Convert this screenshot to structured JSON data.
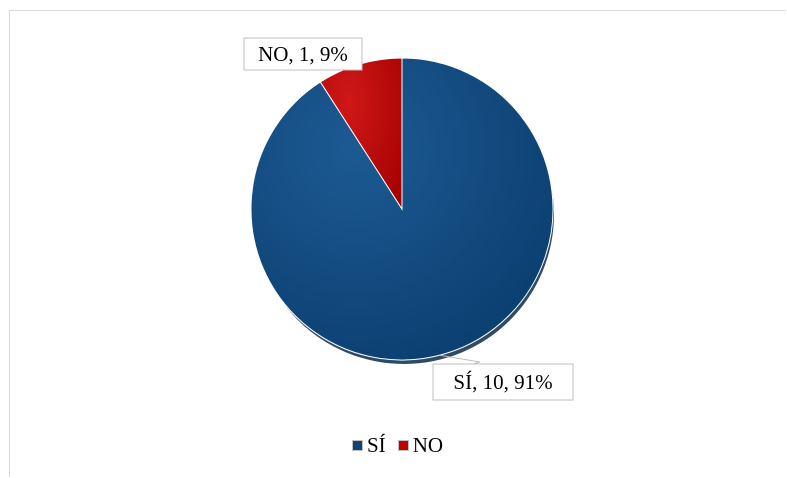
{
  "chart_data": {
    "type": "pie",
    "title": "",
    "slices": [
      {
        "label": "SÍ",
        "value": 10,
        "percent": 91,
        "color": "#0e4476",
        "data_label": "SÍ, 10, 91%"
      },
      {
        "label": "NO",
        "value": 1,
        "percent": 9,
        "color": "#c00000",
        "data_label": "NO, 1, 9%"
      }
    ],
    "legend": {
      "placement": "bottom",
      "entries": [
        "SÍ",
        "NO"
      ]
    }
  }
}
